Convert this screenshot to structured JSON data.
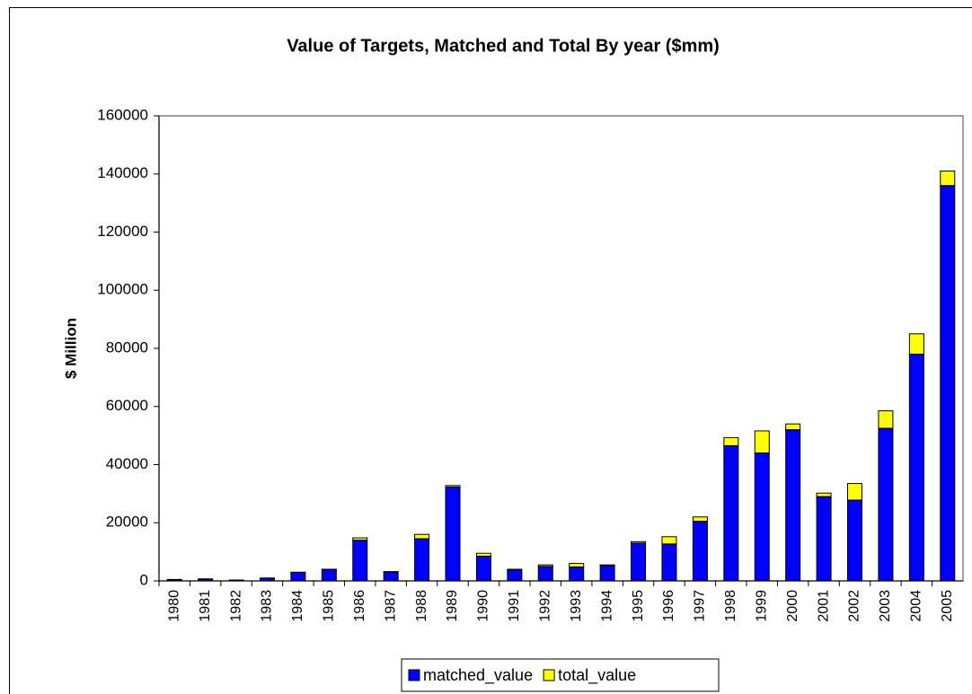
{
  "chart_data": {
    "type": "stacked_bar",
    "title": "Value of Targets, Matched and Total By year ($mm)",
    "y_label": "$ Million",
    "categories": [
      "1980",
      "1981",
      "1982",
      "1983",
      "1984",
      "1985",
      "1986",
      "1987",
      "1988",
      "1989",
      "1990",
      "1991",
      "1992",
      "1993",
      "1994",
      "1995",
      "1996",
      "1997",
      "1998",
      "1999",
      "2000",
      "2001",
      "2002",
      "2003",
      "2004",
      "2005"
    ],
    "series": [
      {
        "name": "matched_value",
        "color": "#0000ff",
        "values": [
          400,
          600,
          200,
          900,
          2900,
          3900,
          14000,
          3000,
          14500,
          32300,
          8500,
          3700,
          5000,
          4800,
          5200,
          13000,
          12700,
          20500,
          46500,
          44000,
          52000,
          29000,
          27800,
          52500,
          78000,
          136000
        ]
      },
      {
        "name": "total_value",
        "color": "#ffff00",
        "values": [
          100,
          100,
          100,
          100,
          100,
          100,
          800,
          200,
          1500,
          500,
          1000,
          300,
          500,
          1200,
          300,
          500,
          2500,
          1500,
          2800,
          7600,
          2000,
          1200,
          5700,
          6000,
          7000,
          5000
        ]
      }
    ],
    "ylim": [
      0,
      160000
    ],
    "yticks": [
      0,
      20000,
      40000,
      60000,
      80000,
      100000,
      120000,
      140000,
      160000
    ],
    "legend": "bottom"
  }
}
